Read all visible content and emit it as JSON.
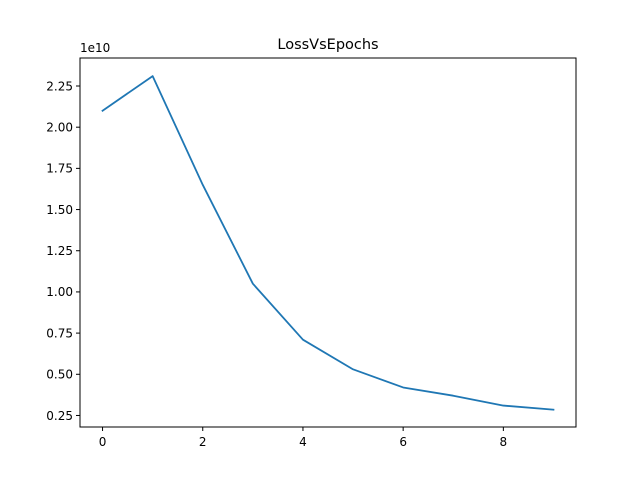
{
  "chart_data": {
    "type": "line",
    "title": "LossVsEpochs",
    "xlabel": "",
    "ylabel": "",
    "y_offset_label": "1e10",
    "x_ticks": [
      0,
      2,
      4,
      6,
      8
    ],
    "x_tick_labels": [
      "0",
      "2",
      "4",
      "6",
      "8"
    ],
    "y_ticks": [
      0.25,
      0.5,
      0.75,
      1.0,
      1.25,
      1.5,
      1.75,
      2.0,
      2.25
    ],
    "y_tick_labels": [
      "0.25",
      "0.50",
      "0.75",
      "1.00",
      "1.25",
      "1.50",
      "1.75",
      "2.00",
      "2.25"
    ],
    "xlim": [
      -0.45,
      9.45
    ],
    "ylim": [
      0.18,
      2.42
    ],
    "grid": false,
    "series": [
      {
        "color": "#1f77b4",
        "x": [
          0,
          1,
          2,
          3,
          4,
          5,
          6,
          7,
          8,
          9
        ],
        "values": [
          2.1,
          2.31,
          1.65,
          1.05,
          0.71,
          0.53,
          0.42,
          0.37,
          0.31,
          0.285
        ]
      }
    ]
  }
}
